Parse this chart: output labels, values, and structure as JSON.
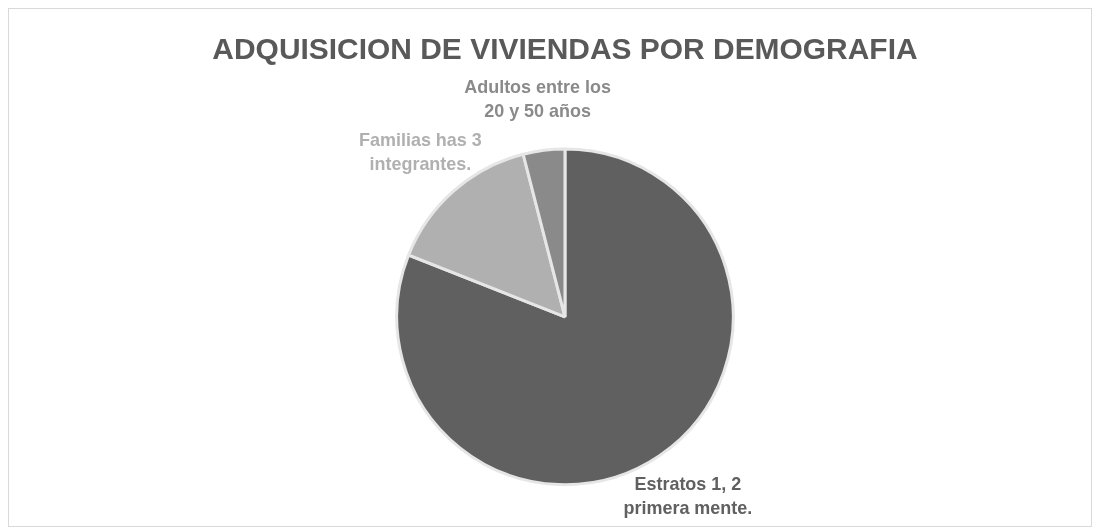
{
  "chart_data": {
    "type": "pie",
    "title": "ADQUISICION DE VIVIENDAS POR DEMOGRAFIA",
    "categories": [
      "Estratos 1, 2 primera mente.",
      "Familias has 3 integrantes.",
      "Adultos entre los 20 y 50 años"
    ],
    "values": [
      81,
      15,
      4
    ],
    "colors": [
      "#606060",
      "#b0b0b0",
      "#8a8a8a"
    ],
    "legend": false
  }
}
